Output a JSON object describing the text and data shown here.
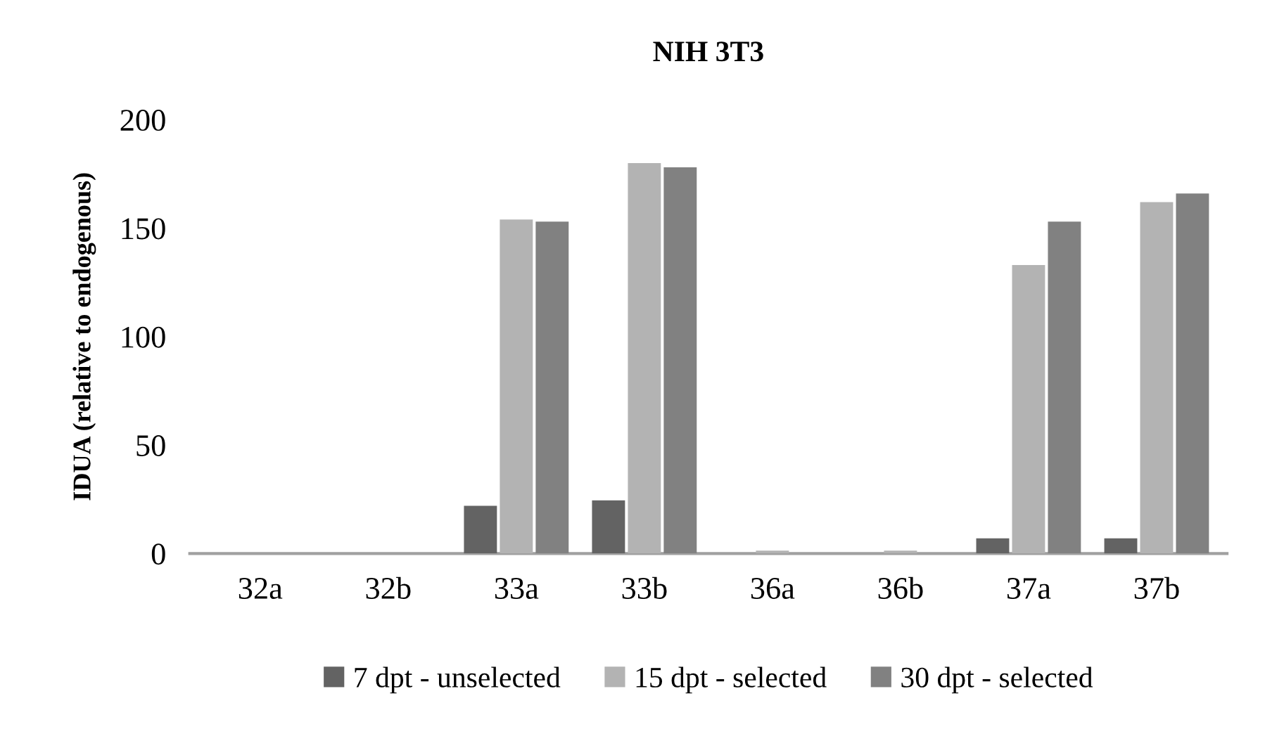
{
  "chart_data": {
    "type": "bar",
    "title": "NIH 3T3",
    "ylabel": "IDUA (relative to endogenous)",
    "categories": [
      "32a",
      "32b",
      "33a",
      "33b",
      "36a",
      "36b",
      "37a",
      "37b"
    ],
    "series": [
      {
        "name": "7 dpt - unselected",
        "color": "#636363",
        "values": [
          0,
          0,
          22,
          24.5,
          0,
          0,
          7,
          7
        ]
      },
      {
        "name": "15 dpt - selected",
        "color": "#b3b3b3",
        "values": [
          0,
          0,
          154,
          180,
          1.3,
          1.3,
          133,
          162
        ]
      },
      {
        "name": "30 dpt - selected",
        "color": "#818181",
        "values": [
          0,
          0,
          153,
          178,
          0,
          0,
          153,
          166
        ]
      }
    ],
    "ylim": [
      0,
      200
    ],
    "yticks": [
      0,
      50,
      100,
      150,
      200
    ],
    "grid": false,
    "legend": "bottom"
  }
}
